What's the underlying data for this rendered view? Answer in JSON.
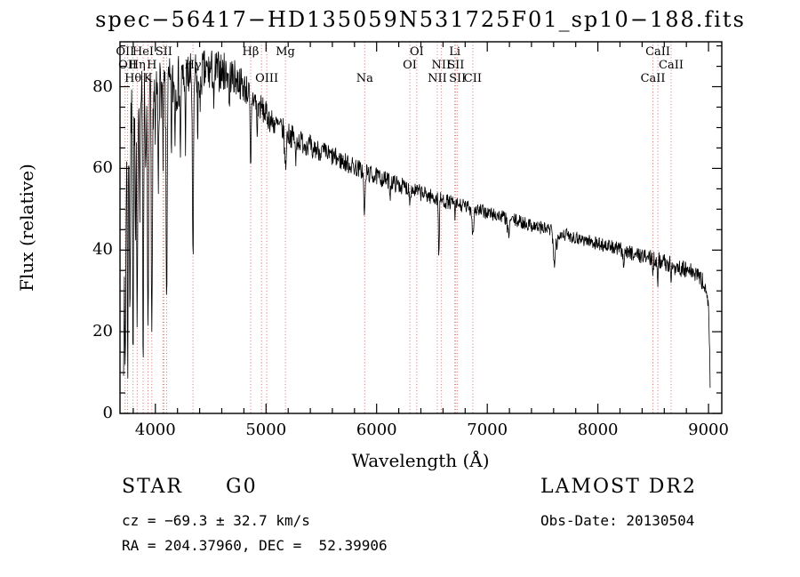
{
  "title": "spec−56417−HD135059N531725F01_sp10−188.fits",
  "axes": {
    "xlabel": "Wavelength (Å)",
    "ylabel": "Flux (relative)",
    "xlim": [
      3680,
      9120
    ],
    "ylim": [
      0,
      91
    ],
    "x_ticks": [
      4000,
      5000,
      6000,
      7000,
      8000,
      9000
    ],
    "y_ticks": [
      0,
      20,
      40,
      60,
      80
    ],
    "x_minor_step": 200,
    "y_minor_step": 5
  },
  "footer": {
    "class": "STAR",
    "subclass": "G0",
    "survey": "LAMOST DR2",
    "cz": "cz = −69.3 ± 32.7 km/s",
    "obs_date": "Obs-Date: 20130504",
    "ra_dec": "RA = 204.37960, DEC =  52.39906"
  },
  "chart_data": {
    "type": "line",
    "title": "spec−56417−HD135059N531725F01_sp10−188.fits",
    "xlabel": "Wavelength (Å)",
    "ylabel": "Flux (relative)",
    "xlim": [
      3680,
      9120
    ],
    "ylim": [
      0,
      91
    ],
    "grid": false,
    "series_name": "flux",
    "series_color": "#000000",
    "marker_color": "#cc6666",
    "wavelength_range": [
      3712,
      9016
    ],
    "sample_step": 3.5,
    "noise_seed": 7,
    "continuum_points": [
      [
        3712,
        18
      ],
      [
        3725,
        55
      ],
      [
        3745,
        68
      ],
      [
        3775,
        73
      ],
      [
        3815,
        75
      ],
      [
        3860,
        77
      ],
      [
        3920,
        78
      ],
      [
        4000,
        79
      ],
      [
        4120,
        80
      ],
      [
        4250,
        81.5
      ],
      [
        4400,
        83
      ],
      [
        4520,
        84
      ],
      [
        4650,
        83.5
      ],
      [
        4750,
        81.5
      ],
      [
        4850,
        78.5
      ],
      [
        4950,
        75
      ],
      [
        5050,
        71.5
      ],
      [
        5150,
        69.5
      ],
      [
        5250,
        67.5
      ],
      [
        5400,
        65.5
      ],
      [
        5550,
        63.5
      ],
      [
        5750,
        61
      ],
      [
        5950,
        58.5
      ],
      [
        6150,
        56.5
      ],
      [
        6350,
        54.5
      ],
      [
        6550,
        52.5
      ],
      [
        6750,
        51
      ],
      [
        6950,
        49.5
      ],
      [
        7150,
        48
      ],
      [
        7350,
        46.5
      ],
      [
        7550,
        45
      ],
      [
        7750,
        43.5
      ],
      [
        7950,
        42
      ],
      [
        8150,
        40.5
      ],
      [
        8350,
        39
      ],
      [
        8550,
        37.5
      ],
      [
        8750,
        35.5
      ],
      [
        8900,
        34
      ],
      [
        8975,
        31
      ],
      [
        9000,
        26
      ],
      [
        9008,
        18
      ],
      [
        9016,
        6
      ]
    ],
    "noise_profile": [
      [
        3712,
        8.5
      ],
      [
        4000,
        7.5
      ],
      [
        4400,
        6
      ],
      [
        4700,
        4.5
      ],
      [
        5000,
        3.2
      ],
      [
        5500,
        2.6
      ],
      [
        6000,
        2.2
      ],
      [
        6600,
        1.9
      ],
      [
        7200,
        1.7
      ],
      [
        8000,
        1.7
      ],
      [
        8500,
        2
      ],
      [
        8900,
        2.4
      ],
      [
        9016,
        2
      ]
    ],
    "absorption_lines": [
      [
        3727,
        45,
        5
      ],
      [
        3750,
        55,
        4
      ],
      [
        3770,
        48,
        4
      ],
      [
        3798,
        58,
        4
      ],
      [
        3820,
        35,
        4
      ],
      [
        3835,
        62,
        4
      ],
      [
        3860,
        25,
        3
      ],
      [
        3889,
        66,
        4
      ],
      [
        3912,
        20,
        3
      ],
      [
        3933,
        62,
        5
      ],
      [
        3968,
        66,
        5
      ],
      [
        4000,
        18,
        3
      ],
      [
        4026,
        24,
        3
      ],
      [
        4068,
        18,
        3
      ],
      [
        4101,
        52,
        5
      ],
      [
        4144,
        16,
        3
      ],
      [
        4178,
        12,
        3
      ],
      [
        4226,
        22,
        3
      ],
      [
        4271,
        14,
        3
      ],
      [
        4340,
        48,
        5
      ],
      [
        4383,
        18,
        3
      ],
      [
        4405,
        12,
        3
      ],
      [
        4530,
        10,
        4
      ],
      [
        4668,
        10,
        3
      ],
      [
        4861,
        20,
        5
      ],
      [
        4920,
        8,
        4
      ],
      [
        5175,
        9,
        7
      ],
      [
        5269,
        7,
        4
      ],
      [
        5420,
        5,
        4
      ],
      [
        5890,
        11,
        6
      ],
      [
        6122,
        4,
        3
      ],
      [
        6300,
        4,
        3
      ],
      [
        6563,
        14,
        4
      ],
      [
        6710,
        3,
        4
      ],
      [
        6870,
        6,
        7
      ],
      [
        7190,
        4,
        9
      ],
      [
        7605,
        8,
        9
      ],
      [
        7630,
        5,
        4
      ],
      [
        8230,
        3,
        6
      ],
      [
        8498,
        4,
        3
      ],
      [
        8542,
        6,
        3
      ],
      [
        8662,
        6,
        3
      ]
    ],
    "line_markers": [
      {
        "label": "OII",
        "wavelength": 3727,
        "row": 1
      },
      {
        "label": "HeI",
        "wavelength": 3889,
        "row": 1
      },
      {
        "label": "SII",
        "wavelength": 4076,
        "row": 1
      },
      {
        "label": "Hβ",
        "wavelength": 4861,
        "row": 1
      },
      {
        "label": "Mg",
        "wavelength": 5175,
        "row": 1
      },
      {
        "label": "OI",
        "wavelength": 6363,
        "row": 1
      },
      {
        "label": "Li",
        "wavelength": 6707,
        "row": 1
      },
      {
        "label": "CaII",
        "wavelength": 8542,
        "row": 1
      },
      {
        "label": "OII",
        "wavelength": 3749,
        "row": 2
      },
      {
        "label": "Hη",
        "wavelength": 3835,
        "row": 2
      },
      {
        "label": "H",
        "wavelength": 3968,
        "row": 2
      },
      {
        "label": "Hγ",
        "wavelength": 4340,
        "row": 2
      },
      {
        "label": "OI",
        "wavelength": 6300,
        "row": 2
      },
      {
        "label": "NII",
        "wavelength": 6583,
        "row": 2
      },
      {
        "label": "SII",
        "wavelength": 6716,
        "row": 2
      },
      {
        "label": "CaII",
        "wavelength": 8662,
        "row": 2
      },
      {
        "label": "Hθ",
        "wavelength": 3798,
        "row": 3
      },
      {
        "label": "K",
        "wavelength": 3933,
        "row": 3
      },
      {
        "label": "OIII",
        "wavelength": 5007,
        "row": 3
      },
      {
        "label": "Na",
        "wavelength": 5892,
        "row": 3
      },
      {
        "label": "NII",
        "wavelength": 6548,
        "row": 3
      },
      {
        "label": "SII",
        "wavelength": 6731,
        "row": 3
      },
      {
        "label": "CII",
        "wavelength": 6869,
        "row": 3
      },
      {
        "label": "CaII",
        "wavelength": 8498,
        "row": 3
      },
      {
        "label": "",
        "wavelength": 4068,
        "row": 0
      },
      {
        "label": "",
        "wavelength": 4101,
        "row": 0
      },
      {
        "label": "",
        "wavelength": 4959,
        "row": 0
      }
    ]
  }
}
